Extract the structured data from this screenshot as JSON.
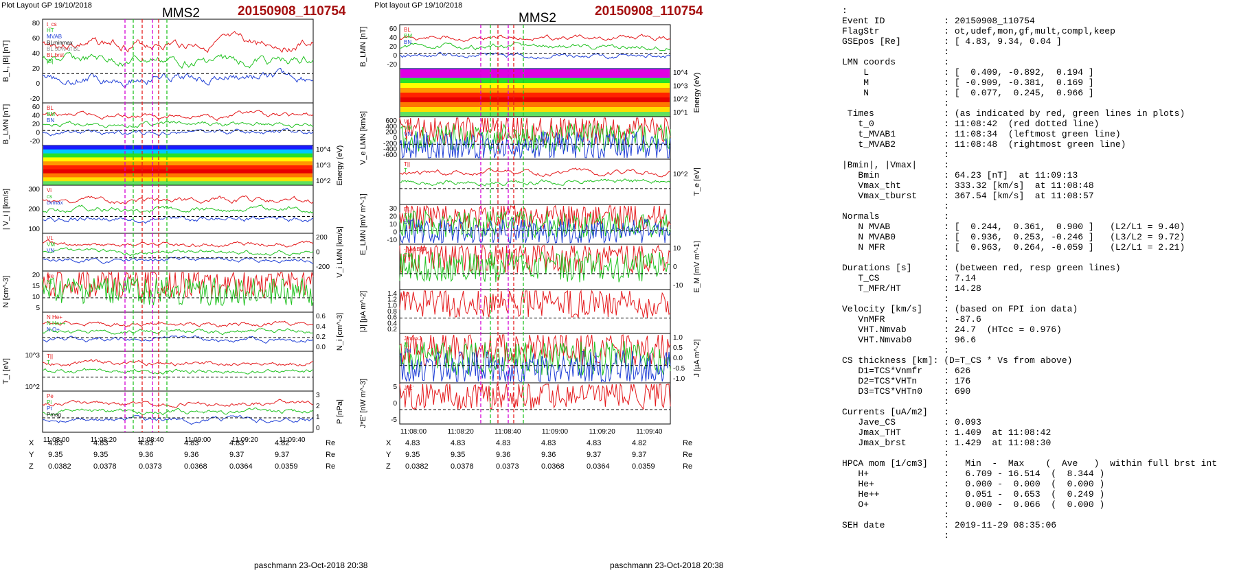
{
  "left": {
    "header": {
      "layout": "Plot Layout GP 19/10/2018",
      "spacecraft": "MMS2",
      "event": "20150908_110754"
    },
    "footer": "paschmann 23-Oct-2018 20:38",
    "times": [
      "11:08:00",
      "11:08:20",
      "11:08:40",
      "11:09:00",
      "11:09:20",
      "11:09:40"
    ],
    "panels": [
      {
        "ylabel": "B_L, |B| [nT]",
        "ticks": [
          "80",
          "60",
          "40",
          "20",
          "0",
          "-20"
        ],
        "legend": [
          "t_cs",
          "HT",
          "MVAB",
          "BLminmax",
          "BL 50% of BL",
          "BL brst",
          "|B|"
        ]
      },
      {
        "ylabel": "B_LMN [nT]",
        "ticks": [
          "60",
          "40",
          "20",
          "0",
          "-20"
        ],
        "legend": [
          "BL",
          "BM",
          "BN"
        ]
      },
      {
        "ylabel": "Energy (eV)",
        "ticks": [
          "10^4",
          "10^3",
          "10^2"
        ],
        "legend": []
      },
      {
        "ylabel": "| V_i | [km/s]",
        "ticks": [
          "300",
          "200",
          "100"
        ],
        "legend": [
          "Vi",
          "cs",
          "dvmax"
        ]
      },
      {
        "ylabel": "V_i LMN [km/s]",
        "ticks": [
          "200",
          "0",
          "-200"
        ],
        "legend": [
          "VL",
          "VM",
          "VN"
        ]
      },
      {
        "ylabel": "N [cm^-3]",
        "ticks": [
          "20",
          "15",
          "10",
          "5"
        ],
        "legend": [
          "Ne",
          "Ni"
        ]
      },
      {
        "ylabel": "N_i [cm^-3]",
        "ticks": [
          "0.6",
          "0.4",
          "0.2",
          "0.0"
        ],
        "legend": [
          "N He+",
          "N He++",
          "N O+"
        ]
      },
      {
        "ylabel": "T_i [eV]",
        "ticks": [
          "10^3",
          "10^2"
        ],
        "legend": [
          "T||",
          "T"
        ]
      },
      {
        "ylabel": "P [nPa]",
        "ticks": [
          "3",
          "2",
          "1",
          "0"
        ],
        "legend": [
          "Pe",
          "Pi",
          "Pt",
          "Pmag"
        ]
      }
    ],
    "pos_labels": [
      "X",
      "Y",
      "Z"
    ],
    "pos_unit": "Re",
    "pos": [
      [
        "4.83",
        "4.83",
        "4.83",
        "4.83",
        "4.83",
        "4.82"
      ],
      [
        "9.35",
        "9.35",
        "9.36",
        "9.36",
        "9.37",
        "9.37"
      ],
      [
        "0.0382",
        "0.0378",
        "0.0373",
        "0.0368",
        "0.0364",
        "0.0359"
      ]
    ]
  },
  "right": {
    "header": {
      "layout": "Plot layout GP 19/10/2018",
      "spacecraft": "MMS2",
      "event": "20150908_110754"
    },
    "footer": "paschmann 23-Oct-2018 20:38",
    "times": [
      "11:08:00",
      "11:08:20",
      "11:08:40",
      "11:09:00",
      "11:09:20",
      "11:09:40"
    ],
    "panels": [
      {
        "ylabel": "B_LMN [nT]",
        "ticks": [
          "60",
          "40",
          "20",
          "0",
          "-20"
        ],
        "legend": [
          "BL",
          "BM",
          "BN"
        ]
      },
      {
        "ylabel": "Energy (eV)",
        "ticks": [
          "10^4",
          "10^3",
          "10^2",
          "10^1"
        ],
        "legend": []
      },
      {
        "ylabel": "V_e LMN [km/s]",
        "ticks": [
          "600",
          "400",
          "200",
          "0",
          "-200",
          "-400",
          "-600"
        ],
        "legend": [
          "VL",
          "VM",
          "VN"
        ]
      },
      {
        "ylabel": "T_e [eV]",
        "ticks": [
          "10^2"
        ],
        "legend": [
          "T||",
          "T"
        ]
      },
      {
        "ylabel": "E_LMN [mV m^-1]",
        "ticks": [
          "30",
          "20",
          "10",
          "0",
          "-10"
        ],
        "legend": [
          "EL",
          "EM",
          "EN"
        ]
      },
      {
        "ylabel": "E_M [mV m^-1]",
        "ticks": [
          "10",
          "0",
          "-10"
        ],
        "legend": [
          "-(VexB)M",
          "EM"
        ]
      },
      {
        "ylabel": "|J| [µA m^-2]",
        "ticks": [
          "1.4",
          "1.2",
          "1.0",
          "0.8",
          "0.6",
          "0.4",
          "0.2"
        ],
        "legend": [
          "|J|"
        ]
      },
      {
        "ylabel": "J [µA m^-2]",
        "ticks": [
          "1.0",
          "0.5",
          "0.0",
          "-0.5",
          "-1.0"
        ],
        "legend": [
          "J maxJ",
          "JL",
          "JM"
        ]
      },
      {
        "ylabel": "J*E' [nW m^-3]",
        "ticks": [
          "5",
          "0",
          "-5"
        ],
        "legend": [
          "J*E'"
        ]
      }
    ],
    "pos_labels": [
      "X",
      "Y",
      "Z"
    ],
    "pos_unit": "Re",
    "pos": [
      [
        "4.83",
        "4.83",
        "4.83",
        "4.83",
        "4.83",
        "4.82"
      ],
      [
        "9.35",
        "9.35",
        "9.36",
        "9.36",
        "9.37",
        "9.37"
      ],
      [
        "0.0382",
        "0.0378",
        "0.0373",
        "0.0368",
        "0.0364",
        "0.0359"
      ]
    ]
  },
  "info_lines": [
    ":",
    "Event ID           : 20150908_110754",
    "FlagStr            : ot,udef,mon,gf,mult,compl,keep",
    "GSEpos [Re]        : [ 4.83, 9.34, 0.04 ]",
    "                   :",
    "LMN coords         :",
    "    L              : [  0.409, -0.892,  0.194 ]",
    "    M              : [ -0.909, -0.381,  0.169 ]",
    "    N              : [  0.077,  0.245,  0.966 ]",
    "                   :",
    " Times             : (as indicated by red, green lines in plots)",
    "   t_0             : 11:08:42  (red dotted line)",
    "   t_MVAB1         : 11:08:34  (leftmost green line)",
    "   t_MVAB2         : 11:08:48  (rightmost green line)",
    "                   :",
    "|Bmin|, |Vmax|     :",
    "   Bmin            : 64.23 [nT]  at 11:09:13",
    "   Vmax_tht        : 333.32 [km/s]  at 11:08:48",
    "   Vmax_tburst     : 367.54 [km/s]  at 11:08:57",
    "                   :",
    "Normals            :",
    "   N MVAB          : [  0.244,  0.361,  0.900 ]   (L2/L1 = 9.40)",
    "   N MVAB0         : [  0.936,  0.253, -0.246 ]   (L3/L2 = 9.72)",
    "   N MFR           : [  0.963,  0.264, -0.059 ]   (L2/L1 = 2.21)",
    "                   :",
    "Durations [s]      : (between red, resp green lines)",
    "   T_CS            : 7.14",
    "   T_MFR/HT        : 14.28",
    "                   :",
    "Velocity [km/s]    : (based on FPI ion data)",
    "   VnMFR           : -87.6",
    "   VHT.Nmvab       : 24.7  (HTcc = 0.976)",
    "   VHT.Nmvab0      : 96.6",
    "                   :",
    "CS thickness [km]: (D=T_CS * Vs from above)",
    "   D1=TCS*Vnmfr    : 626",
    "   D2=TCS*VHTn     : 176",
    "   D3=TCS*VHTn0    : 690",
    "                   :",
    "Currents [uA/m2]   :",
    "   Jave_CS         : 0.093",
    "   Jmax_THT        : 1.409  at 11:08:42",
    "   Jmax_brst       : 1.429  at 11:08:30",
    "                   :",
    "HPCA mom [1/cm3]   :   Min  -  Max    (  Ave   )  within full brst int",
    "   H+              :   6.709 - 16.514  (  8.344 )",
    "   He+             :   0.000 -  0.000  (  0.000 )",
    "   He++            :   0.051 -  0.653  (  0.249 )",
    "   O+              :   0.000 -  0.066  (  0.000 )",
    "                   :",
    "SEH date           : 2019-11-29 08:35:06",
    "                   :"
  ],
  "colors": {
    "event": "#a50f0f",
    "red": "#e41a1c",
    "green": "#22c322",
    "blue": "#1f3fd6",
    "black": "#111111",
    "gray": "#8a8a8a",
    "magenta": "#d400d4"
  }
}
